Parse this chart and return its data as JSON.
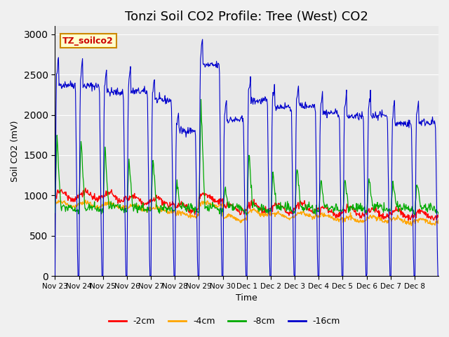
{
  "title": "Tonzi Soil CO2 Profile: Tree (West) CO2",
  "xlabel": "Time",
  "ylabel": "Soil CO2 (mV)",
  "ylim": [
    0,
    3100
  ],
  "yticks": [
    0,
    500,
    1000,
    1500,
    2000,
    2500,
    3000
  ],
  "background_color": "#e8e8e8",
  "plot_bg_color": "#e8e8e8",
  "legend_label": "TZ_soilco2",
  "legend_entries": [
    "-2cm",
    "-4cm",
    "-8cm",
    "-16cm"
  ],
  "legend_colors": [
    "#ff0000",
    "#ffa500",
    "#00aa00",
    "#0000cc"
  ],
  "line_colors": {
    "d2cm": "#ff0000",
    "d4cm": "#ffa500",
    "d8cm": "#00aa00",
    "d16cm": "#0000cc"
  },
  "x_tick_labels": [
    "Nov 23",
    "Nov 24",
    "Nov 25",
    "Nov 26",
    "Nov 27",
    "Nov 28",
    "Nov 29",
    "Nov 30",
    "Dec 1",
    "Dec 2",
    "Dec 3",
    "Dec 4",
    "Dec 5",
    "Dec 6",
    "Dec 7",
    "Dec 8"
  ],
  "num_days": 16,
  "title_fontsize": 13
}
